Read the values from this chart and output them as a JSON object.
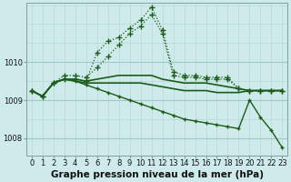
{
  "background_color": "#ceeaea",
  "grid_color_minor": "#b8d8d8",
  "grid_color_major": "#a0c8c8",
  "line_color": "#1a5c1a",
  "title": "Graphe pression niveau de la mer (hPa)",
  "title_fontsize": 7.5,
  "tick_fontsize": 6.0,
  "xlim": [
    -0.5,
    23.5
  ],
  "ylim": [
    1007.55,
    1011.55
  ],
  "yticks": [
    1008,
    1009,
    1010
  ],
  "xticks": [
    0,
    1,
    2,
    3,
    4,
    5,
    6,
    7,
    8,
    9,
    10,
    11,
    12,
    13,
    14,
    15,
    16,
    17,
    18,
    19,
    20,
    21,
    22,
    23
  ],
  "series": [
    {
      "x": [
        0,
        1,
        2,
        3,
        4,
        5,
        6,
        7,
        8,
        9,
        10,
        11,
        12,
        13,
        14,
        15,
        16,
        17,
        18,
        19,
        20,
        21,
        22,
        23
      ],
      "y": [
        1009.25,
        1009.1,
        1009.45,
        1009.55,
        1009.55,
        1009.5,
        1010.25,
        1010.55,
        1010.65,
        1010.9,
        1011.1,
        1011.45,
        1010.85,
        1009.75,
        1009.65,
        1009.65,
        1009.6,
        1009.6,
        1009.6,
        1009.3,
        1009.25,
        1009.25,
        1009.25,
        1009.25
      ],
      "style": "dotted",
      "marker": "+",
      "lw": 0.9,
      "ms": 4
    },
    {
      "x": [
        0,
        1,
        2,
        3,
        4,
        5,
        6,
        7,
        8,
        9,
        10,
        11,
        12,
        13,
        14,
        15,
        16,
        17,
        18,
        19,
        20,
        21,
        22,
        23
      ],
      "y": [
        1009.25,
        1009.1,
        1009.45,
        1009.65,
        1009.65,
        1009.6,
        1009.85,
        1010.15,
        1010.45,
        1010.75,
        1010.95,
        1011.25,
        1010.75,
        1009.65,
        1009.6,
        1009.6,
        1009.55,
        1009.55,
        1009.55,
        1009.3,
        1009.25,
        1009.25,
        1009.25,
        1009.25
      ],
      "style": "dotted",
      "marker": "+",
      "lw": 0.9,
      "ms": 4
    },
    {
      "x": [
        0,
        1,
        2,
        3,
        4,
        5,
        6,
        7,
        8,
        9,
        10,
        11,
        12,
        13,
        14,
        15,
        16,
        17,
        18,
        19,
        20,
        21,
        22,
        23
      ],
      "y": [
        1009.25,
        1009.1,
        1009.45,
        1009.55,
        1009.55,
        1009.5,
        1009.55,
        1009.6,
        1009.65,
        1009.65,
        1009.65,
        1009.65,
        1009.55,
        1009.5,
        1009.45,
        1009.45,
        1009.45,
        1009.4,
        1009.35,
        1009.3,
        1009.25,
        1009.25,
        1009.25,
        1009.25
      ],
      "style": "solid",
      "marker": null,
      "lw": 1.2,
      "ms": 0
    },
    {
      "x": [
        0,
        1,
        2,
        3,
        4,
        5,
        6,
        7,
        8,
        9,
        10,
        11,
        12,
        13,
        14,
        15,
        16,
        17,
        18,
        19,
        20,
        21,
        22,
        23
      ],
      "y": [
        1009.25,
        1009.1,
        1009.45,
        1009.55,
        1009.5,
        1009.45,
        1009.45,
        1009.45,
        1009.45,
        1009.45,
        1009.45,
        1009.4,
        1009.35,
        1009.3,
        1009.25,
        1009.25,
        1009.25,
        1009.2,
        1009.2,
        1009.2,
        1009.25,
        1009.25,
        1009.25,
        1009.25
      ],
      "style": "solid",
      "marker": null,
      "lw": 1.2,
      "ms": 0
    },
    {
      "x": [
        0,
        1,
        2,
        3,
        4,
        5,
        6,
        7,
        8,
        9,
        10,
        11,
        12,
        13,
        14,
        15,
        16,
        17,
        18,
        19,
        20,
        21,
        22,
        23
      ],
      "y": [
        1009.25,
        1009.1,
        1009.45,
        1009.55,
        1009.5,
        1009.4,
        1009.3,
        1009.2,
        1009.1,
        1009.0,
        1008.9,
        1008.8,
        1008.7,
        1008.6,
        1008.5,
        1008.45,
        1008.4,
        1008.35,
        1008.3,
        1008.25,
        1009.0,
        1008.55,
        1008.2,
        1007.75
      ],
      "style": "solid",
      "marker": "+",
      "lw": 1.0,
      "ms": 3
    }
  ]
}
